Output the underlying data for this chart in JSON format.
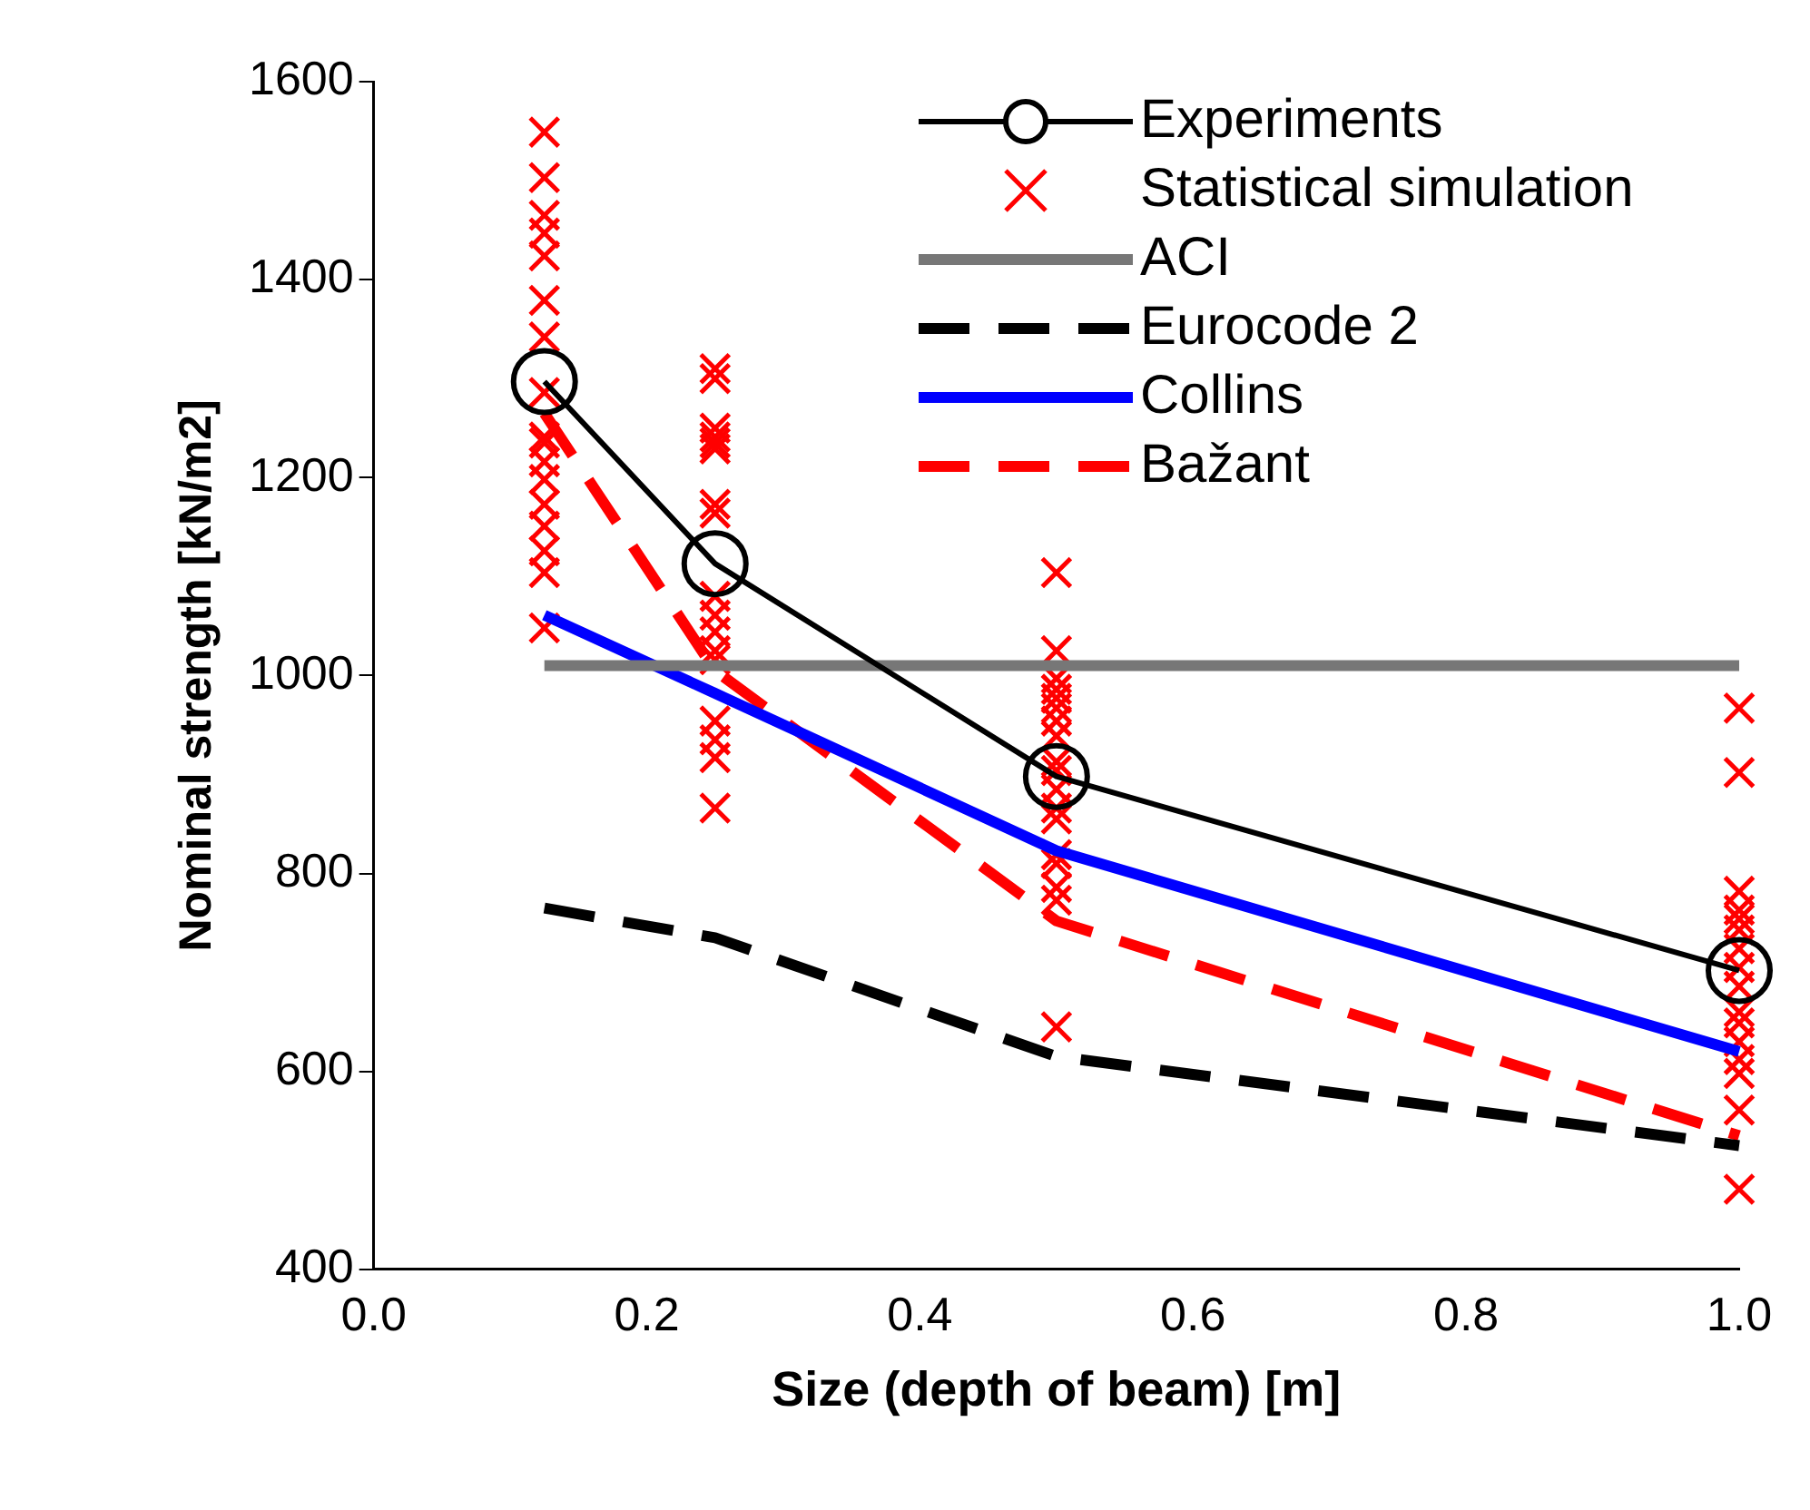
{
  "chart_data": {
    "type": "line",
    "xlabel": "Size (depth of beam) [m]",
    "ylabel": "Nominal strength [kN/m2]",
    "xlim": [
      0.0,
      1.0
    ],
    "xticks": [
      {
        "value": 0,
        "label": "0.0"
      },
      {
        "value": 0.2,
        "label": "0.2"
      },
      {
        "value": 0.4,
        "label": "0.4"
      },
      {
        "value": 0.6,
        "label": "0.6"
      },
      {
        "value": 0.8,
        "label": "0.8"
      },
      {
        "value": 1,
        "label": "1.0"
      }
    ],
    "ylim": [
      400,
      1600
    ],
    "yticks": [
      400,
      600,
      800,
      1000,
      1200,
      1400,
      1600
    ],
    "grid": false,
    "legend": "top right",
    "series": [
      {
        "name": "Experiments",
        "type": "line",
        "color": "#000000",
        "marker": "circle",
        "line_style": "solid",
        "x": [
          0.125,
          0.25,
          0.5,
          1.0
        ],
        "values": [
          1297,
          1113,
          898,
          702
        ]
      },
      {
        "name": "Statistical simulation",
        "type": "scatter",
        "color": "#ff0000",
        "marker": "cross",
        "x": [
          0.125,
          0.125,
          0.125,
          0.125,
          0.125,
          0.125,
          0.125,
          0.125,
          0.125,
          0.125,
          0.125,
          0.125,
          0.125,
          0.125,
          0.125,
          0.125,
          0.125,
          0.25,
          0.25,
          0.25,
          0.25,
          0.25,
          0.25,
          0.25,
          0.25,
          0.25,
          0.25,
          0.25,
          0.25,
          0.25,
          0.25,
          0.25,
          0.25,
          0.25,
          0.5,
          0.5,
          0.5,
          0.5,
          0.5,
          0.5,
          0.5,
          0.5,
          0.5,
          0.5,
          0.5,
          0.5,
          0.5,
          0.5,
          0.5,
          0.5,
          0.5,
          0.5,
          1.0,
          1.0,
          1.0,
          1.0,
          1.0,
          1.0,
          1.0,
          1.0,
          1.0,
          1.0,
          1.0,
          1.0,
          1.0,
          1.0,
          1.0,
          1.0
        ],
        "values": [
          1549,
          1503,
          1465,
          1447,
          1424,
          1379,
          1342,
          1286,
          1241,
          1235,
          1216,
          1198,
          1173,
          1151,
          1126,
          1104,
          1048,
          1310,
          1300,
          1250,
          1241,
          1235,
          1229,
          1173,
          1164,
          1080,
          1061,
          1044,
          1025,
          1016,
          954,
          935,
          917,
          866,
          1104,
          1025,
          997,
          986,
          977,
          967,
          954,
          939,
          913,
          904,
          885,
          866,
          855,
          819,
          810,
          786,
          773,
          645,
          967,
          902,
          782,
          763,
          754,
          743,
          724,
          705,
          686,
          660,
          649,
          630,
          612,
          598,
          561,
          481
        ]
      },
      {
        "name": "ACI",
        "type": "line",
        "color": "#777777",
        "marker": "none",
        "line_style": "solid",
        "x": [
          0.125,
          1.0
        ],
        "values": [
          1010,
          1010
        ]
      },
      {
        "name": "Eurocode 2",
        "type": "line",
        "color": "#000000",
        "marker": "none",
        "line_style": "dashed",
        "x": [
          0.125,
          0.25,
          0.5,
          1.0
        ],
        "values": [
          765,
          735,
          615,
          525
        ]
      },
      {
        "name": "Collins",
        "type": "line",
        "color": "#0000ff",
        "marker": "none",
        "line_style": "solid",
        "x": [
          0.125,
          0.25,
          0.5,
          1.0
        ],
        "values": [
          1061,
          982,
          823,
          620
        ]
      },
      {
        "name": "Bažant",
        "type": "line",
        "color": "#ff0000",
        "marker": "none",
        "line_style": "dashed",
        "x": [
          0.125,
          0.25,
          0.5,
          1.0
        ],
        "values": [
          1265,
          1005,
          752,
          535
        ]
      }
    ]
  }
}
